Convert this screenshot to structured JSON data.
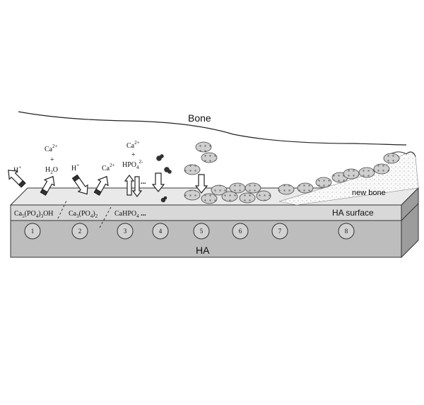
{
  "labels": {
    "bone": "Bone",
    "new_bone": "new bone",
    "ha_surface": "HA surface",
    "ha": "HA"
  },
  "species": {
    "h_plus_1": "H",
    "h_plus_1_sup": "+",
    "ca_1": "Ca",
    "ca_1_sup": "2+",
    "plus_1": "+",
    "water_main": "H",
    "water_sub": "2",
    "water_tail": "O",
    "h_plus_2": "H",
    "h_plus_2_sup": "+",
    "ca_2": "Ca",
    "ca_2_sup": "2+",
    "ca_3": "Ca",
    "ca_3_sup": "2+",
    "plus_3": "+",
    "hpo4": "HPO",
    "hpo4_sub": "4",
    "hpo4_sup": "2-",
    "ellipsis": "..."
  },
  "compounds": {
    "hydroxyapatite": {
      "a": "Ca",
      "s1": "5",
      "b": "(PO",
      "s2": "4",
      "c": ")",
      "s3": "3",
      "d": "OH"
    },
    "tcp": {
      "a": "Ca",
      "s1": "3",
      "b": "(PO",
      "s2": "4",
      "c": ")",
      "s3": "2"
    },
    "dcpa": {
      "a": "CaHPO",
      "s1": "4",
      "tail": " ..."
    }
  },
  "steps": [
    "1",
    "2",
    "3",
    "4",
    "5",
    "6",
    "7",
    "8"
  ]
}
